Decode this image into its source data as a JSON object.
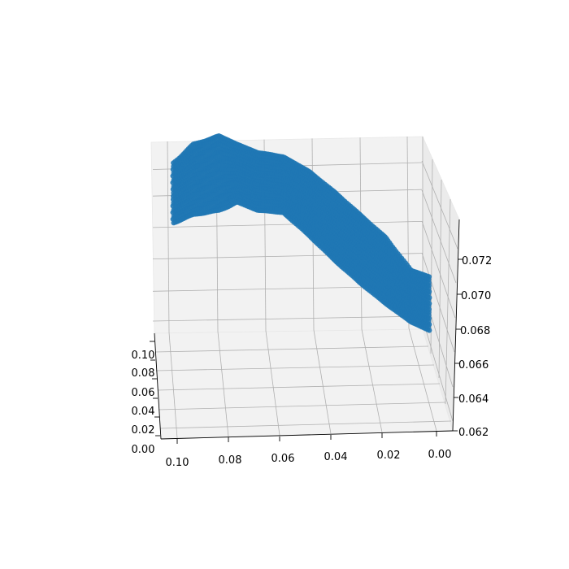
{
  "chart_data": {
    "type": "scatter",
    "projection": "3d",
    "title": "",
    "xlabel": "",
    "ylabel": "",
    "zlabel": "",
    "grid": true,
    "marker_color": "#1f77b4",
    "x_ticks": [
      "0.10",
      "0.08",
      "0.06",
      "0.04",
      "0.02",
      "0.00"
    ],
    "y_ticks": [
      "0.00",
      "0.02",
      "0.04",
      "0.06",
      "0.08",
      "0.10"
    ],
    "z_ticks": [
      "0.062",
      "0.064",
      "0.066",
      "0.068",
      "0.070",
      "0.072"
    ],
    "xlim": [
      0.0,
      0.105
    ],
    "ylim": [
      0.0,
      0.105
    ],
    "zlim": [
      0.0618,
      0.0736
    ],
    "series": [
      {
        "surface_profile": {
          "x": [
            0.103,
            0.095,
            0.085,
            0.078,
            0.07,
            0.06,
            0.05,
            0.04,
            0.03,
            0.02,
            0.01,
            0.003
          ],
          "z_top": [
            0.0724,
            0.0733,
            0.0737,
            0.0733,
            0.0729,
            0.0727,
            0.072,
            0.071,
            0.0699,
            0.0688,
            0.0672,
            0.0669
          ],
          "z_bottom": [
            0.0703,
            0.0707,
            0.0709,
            0.0713,
            0.0709,
            0.0708,
            0.0697,
            0.0685,
            0.0674,
            0.0664,
            0.0655,
            0.0651
          ]
        }
      }
    ]
  }
}
